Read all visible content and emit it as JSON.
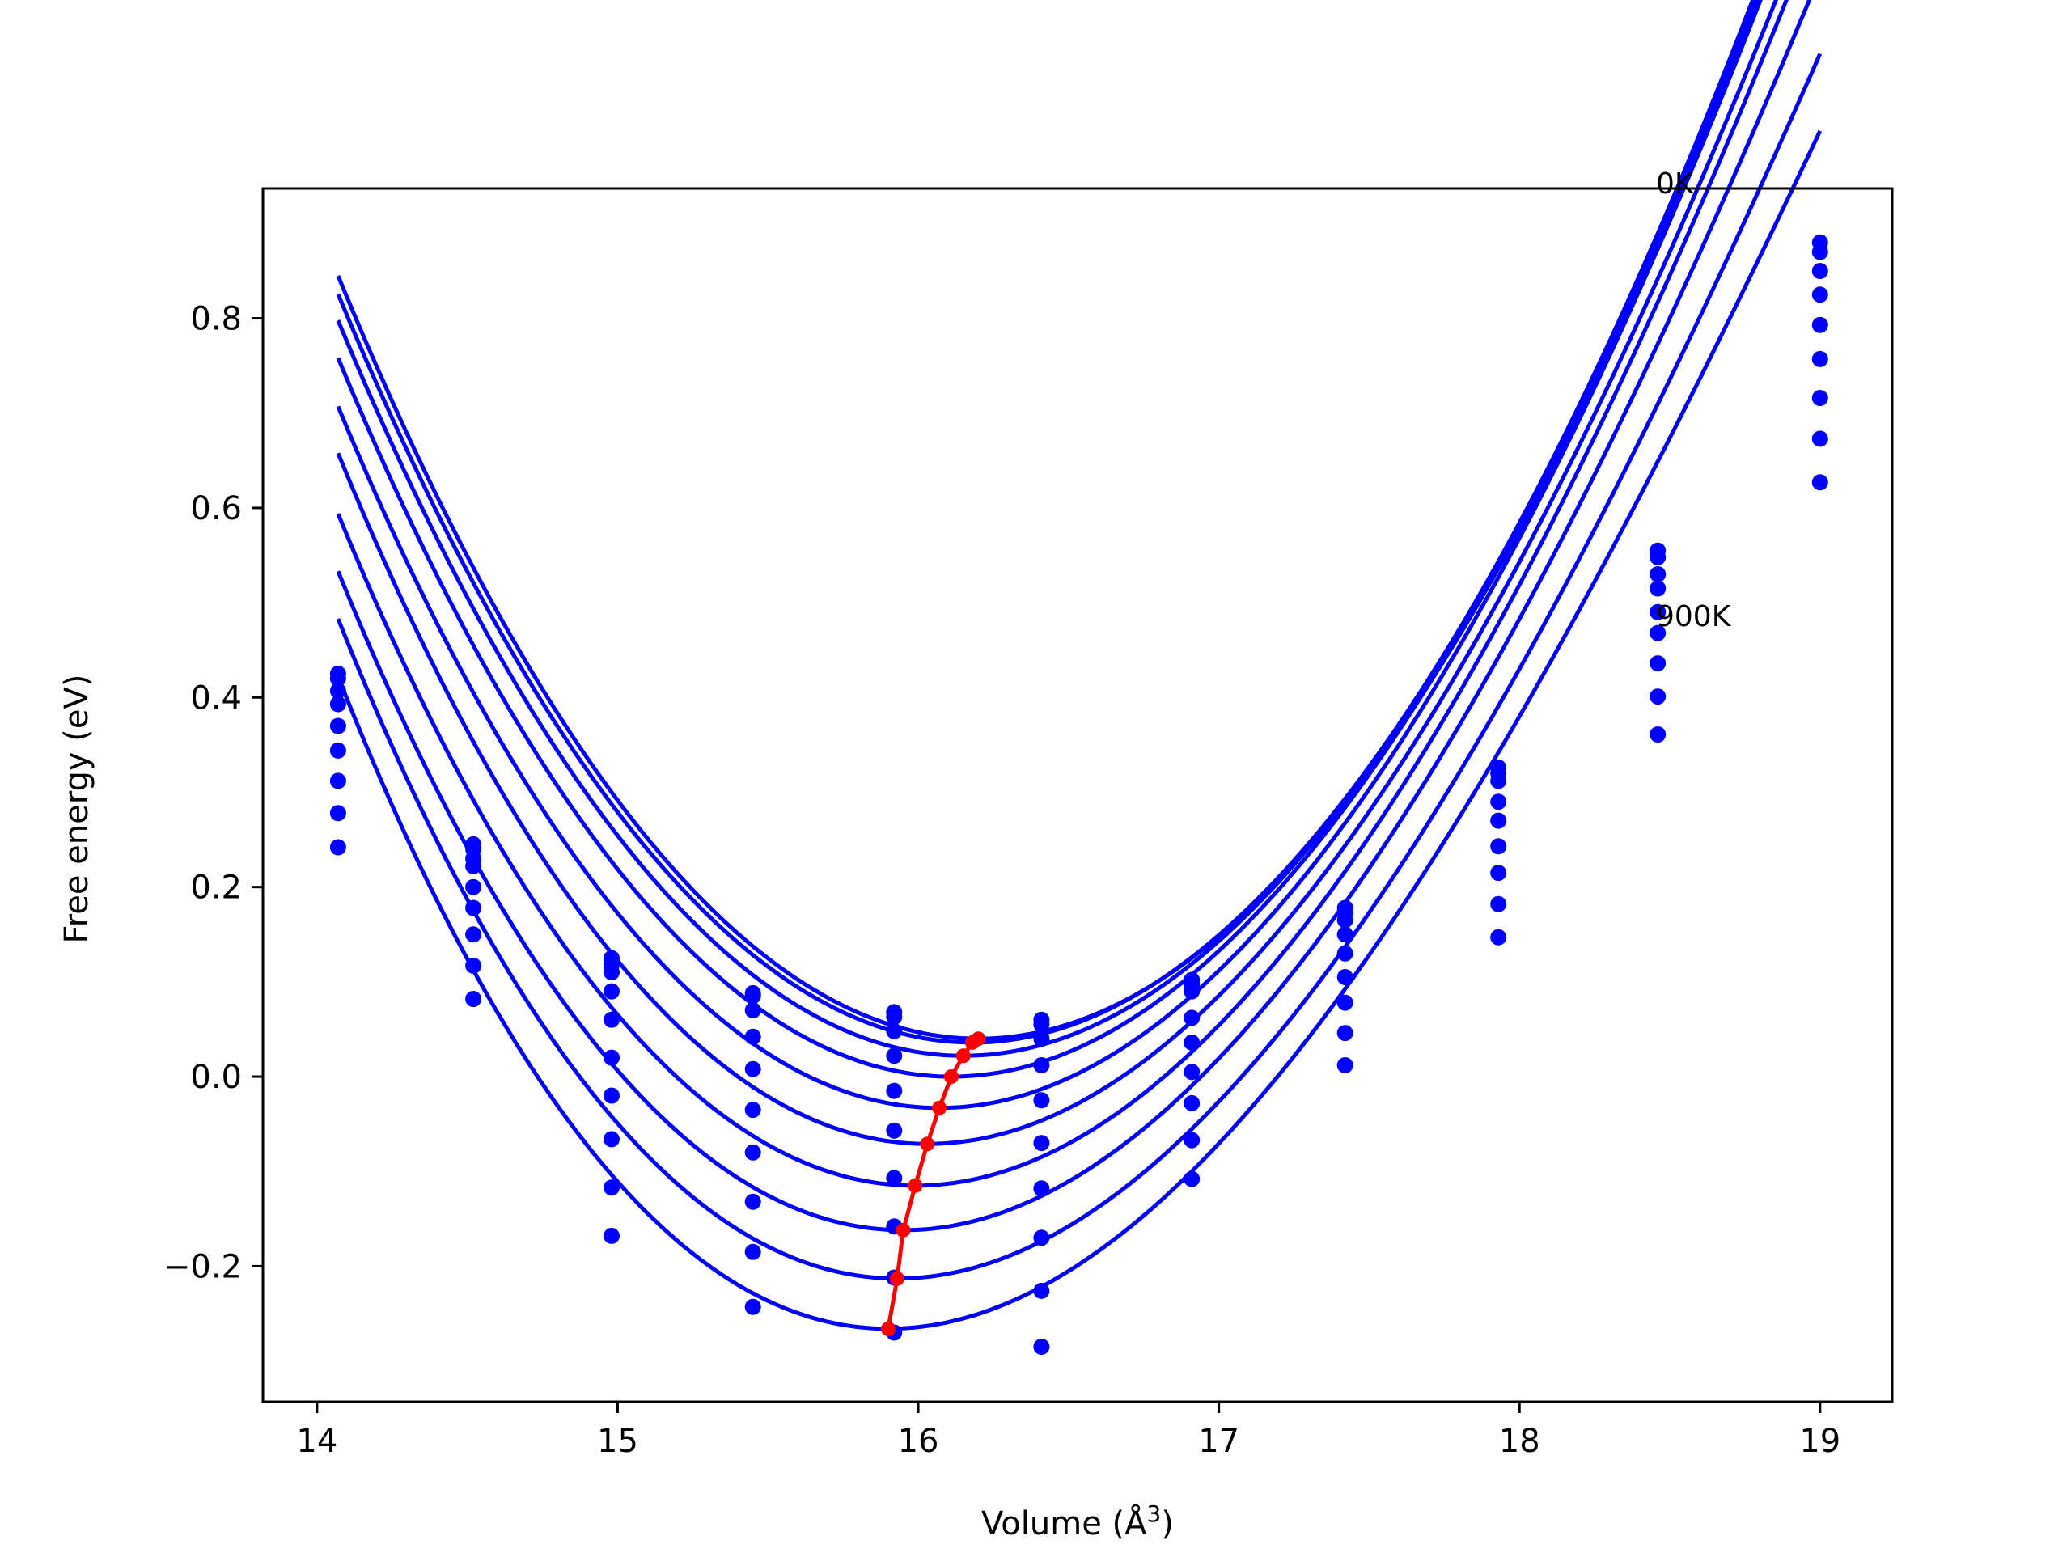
{
  "chart_data": {
    "type": "line",
    "title": "",
    "xlabel": "Volume ($\\AA^3$)",
    "xlabel_text": "Volume (Å",
    "xlabel_sup": "3",
    "xlabel_close": ")",
    "ylabel": "Free energy (eV)",
    "xlim": [
      13.82,
      19.24
    ],
    "ylim": [
      -0.343,
      0.937
    ],
    "xticks": [
      14,
      15,
      16,
      17,
      18,
      19
    ],
    "yticks": [
      -0.2,
      0.0,
      0.2,
      0.4,
      0.6,
      0.8
    ],
    "xtick_labels": [
      "14",
      "15",
      "16",
      "17",
      "18",
      "19"
    ],
    "ytick_labels": [
      "−0.2",
      "0.0",
      "0.2",
      "0.4",
      "0.6",
      "0.8"
    ],
    "annotations": [
      {
        "text": "0K",
        "x": 18.45,
        "y": 0.94
      },
      {
        "text": "900K",
        "x": 18.45,
        "y": 0.485
      }
    ],
    "volumes": [
      14.07,
      14.52,
      14.98,
      15.45,
      15.92,
      16.41,
      16.91,
      17.42,
      17.93,
      18.46,
      19.0
    ],
    "series": [
      {
        "values": [
          0.425,
          0.245,
          0.125,
          0.088,
          0.068,
          0.06,
          0.102,
          0.178,
          0.326,
          0.555,
          0.88
        ],
        "curve": {
          "vmin": 16.2,
          "fmin": 0.04,
          "a": 0.171,
          "b": -0.003
        }
      },
      {
        "values": [
          0.42,
          0.24,
          0.118,
          0.085,
          0.063,
          0.055,
          0.098,
          0.173,
          0.32,
          0.548,
          0.87
        ],
        "curve": {
          "vmin": 16.18,
          "fmin": 0.036,
          "a": 0.171,
          "b": -0.003
        }
      },
      {
        "values": [
          0.407,
          0.23,
          0.11,
          0.07,
          0.048,
          0.04,
          0.09,
          0.165,
          0.312,
          0.53,
          0.85
        ],
        "curve": {
          "vmin": 16.15,
          "fmin": 0.022,
          "a": 0.171,
          "b": -0.004
        }
      },
      {
        "values": [
          0.393,
          0.222,
          0.09,
          0.042,
          0.022,
          0.012,
          0.062,
          0.15,
          0.29,
          0.515,
          0.825
        ],
        "curve": {
          "vmin": 16.11,
          "fmin": 0.0,
          "a": 0.172,
          "b": -0.005
        }
      },
      {
        "values": [
          0.37,
          0.2,
          0.06,
          0.008,
          -0.015,
          -0.025,
          0.036,
          0.13,
          0.27,
          0.49,
          0.793
        ],
        "curve": {
          "vmin": 16.07,
          "fmin": -0.033,
          "a": 0.173,
          "b": -0.006
        }
      },
      {
        "values": [
          0.344,
          0.178,
          0.02,
          -0.035,
          -0.057,
          -0.07,
          0.005,
          0.105,
          0.243,
          0.468,
          0.757
        ],
        "curve": {
          "vmin": 16.03,
          "fmin": -0.071,
          "a": 0.174,
          "b": -0.008
        }
      },
      {
        "values": [
          0.312,
          0.15,
          -0.02,
          -0.08,
          -0.107,
          -0.118,
          -0.028,
          0.078,
          0.215,
          0.436,
          0.716
        ],
        "curve": {
          "vmin": 15.99,
          "fmin": -0.115,
          "a": 0.175,
          "b": -0.009
        }
      },
      {
        "values": [
          0.278,
          0.117,
          -0.066,
          -0.132,
          -0.158,
          -0.17,
          -0.067,
          0.046,
          0.182,
          0.401,
          0.673
        ],
        "curve": {
          "vmin": 15.95,
          "fmin": -0.162,
          "a": 0.176,
          "b": -0.011
        }
      },
      {
        "values": [
          0.242,
          0.082,
          -0.117,
          -0.185,
          -0.212,
          -0.226,
          -0.108,
          0.012,
          0.147,
          0.361,
          0.627
        ],
        "curve": {
          "vmin": 15.93,
          "fmin": -0.213,
          "a": 0.177,
          "b": -0.013
        }
      },
      {
        "values": [
          null,
          null,
          -0.168,
          -0.243,
          -0.27,
          -0.285,
          null,
          null,
          null,
          null,
          null
        ],
        "curve": {
          "vmin": 15.9,
          "fmin": -0.266,
          "a": 0.178,
          "b": -0.015
        }
      }
    ],
    "equilibrium_line": {
      "color": "#ff0000",
      "x": [
        15.9,
        15.93,
        15.95,
        15.99,
        16.03,
        16.07,
        16.11,
        16.15,
        16.18,
        16.2
      ],
      "y": [
        -0.266,
        -0.213,
        -0.162,
        -0.115,
        -0.071,
        -0.033,
        0.0,
        0.022,
        0.036,
        0.04
      ]
    },
    "colors": {
      "curves": "#0000ff",
      "points": "#0000ff",
      "equilibrium": "#ff0000",
      "axes": "#000000"
    },
    "grid": false,
    "legend": "none"
  }
}
